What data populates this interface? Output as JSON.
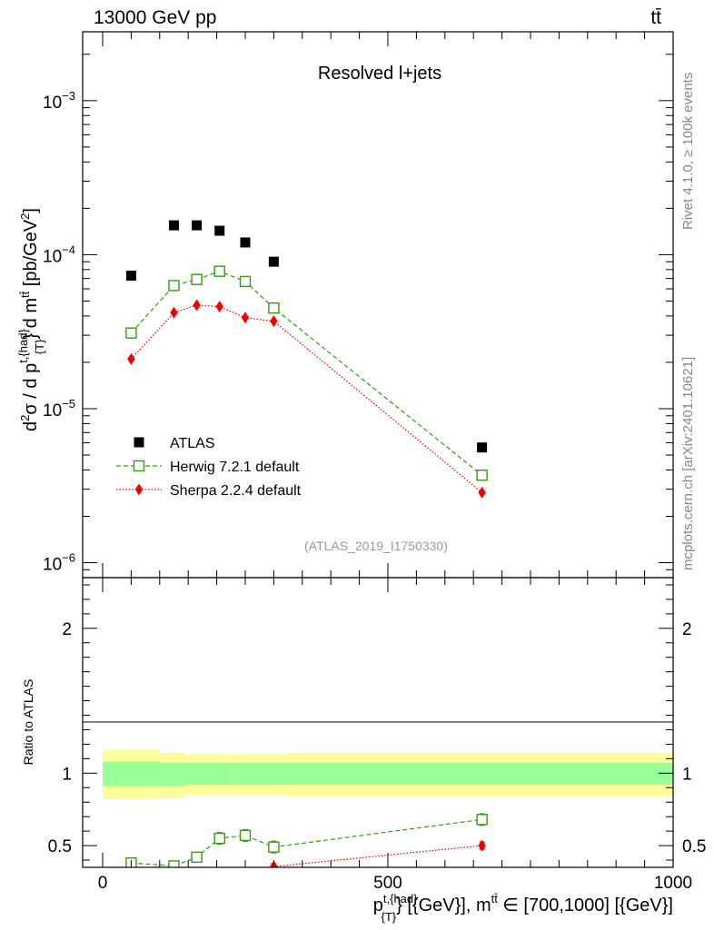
{
  "header": {
    "energy_label": "13000 GeV pp",
    "process_label": "tt̄"
  },
  "side_labels": {
    "rivet": "Rivet 4.1.0, ≥ 100k events",
    "mcplots": "mcplots.cern.ch [arXiv:2401.10621]"
  },
  "chart_data": [
    {
      "type": "scatter",
      "panel": "main",
      "title": "Resolved l+jets",
      "ylabel_text": "d²σ / d p^{t,{had}}_{T} d m^{tt̄} [pb/GeV²]",
      "ylabel": {
        "main": "d",
        "sup1": "2",
        "part2": "σ / d p",
        "sup2": "t,{had}",
        "sub2": "{T}",
        "part3": "} d m",
        "sup3": "tt̄",
        "part4": " [pb/GeV",
        "sup4": "2",
        "part5": "]"
      },
      "yscale": "log",
      "ylim": [
        8e-07,
        0.0028
      ],
      "xlim": [
        -35,
        1000
      ],
      "yticks": [
        {
          "value": 1e-06,
          "label_base": "10",
          "label_exp": "−6"
        },
        {
          "value": 1e-05,
          "label_base": "10",
          "label_exp": "−5"
        },
        {
          "value": 0.0001,
          "label_base": "10",
          "label_exp": "−4"
        },
        {
          "value": 0.001,
          "label_base": "10",
          "label_exp": "−3"
        }
      ],
      "watermark": "(ATLAS_2019_I1750330)",
      "legend_position": "lower-left",
      "series": [
        {
          "name": "ATLAS",
          "style": "square-filled",
          "color": "#000000",
          "x": [
            50,
            125,
            165,
            205,
            250,
            300,
            665
          ],
          "values": [
            7.3e-05,
            0.000155,
            0.000155,
            0.000143,
            0.00012,
            9e-05,
            5.6e-06
          ]
        },
        {
          "name": "Herwig 7.2.1 default",
          "style": "square-open-dashed",
          "color": "#3a9a10",
          "x": [
            50,
            125,
            165,
            205,
            250,
            300,
            665
          ],
          "values": [
            3.1e-05,
            6.3e-05,
            6.9e-05,
            7.8e-05,
            6.7e-05,
            4.5e-05,
            3.7e-06
          ]
        },
        {
          "name": "Sherpa 2.2.4 default",
          "style": "diamond-filled-dotted",
          "color": "#ee0000",
          "x": [
            50,
            125,
            165,
            205,
            250,
            300,
            665
          ],
          "values": [
            2.1e-05,
            4.2e-05,
            4.7e-05,
            4.6e-05,
            3.9e-05,
            3.7e-05,
            2.85e-06
          ]
        }
      ]
    },
    {
      "type": "scatter",
      "panel": "ratio",
      "ylabel": "Ratio to ATLAS",
      "xlabel": {
        "p": "p",
        "sup": "t,{had}",
        "sub": "{T}",
        "rest": "} [{GeV}], m",
        "sup2": "tt̄",
        "tail": " ∈ [700,1000] [{GeV}]"
      },
      "xlabel_text": "p^{t,{had}}_{T}} [{GeV}], m^{tt̄} ∈ [700,1000] [{GeV}]",
      "ylim": [
        0.35,
        2.35
      ],
      "xlim": [
        -35,
        1000
      ],
      "xticks": [
        0,
        500,
        1000
      ],
      "xtick_labels": [
        "0",
        "500",
        "1000"
      ],
      "yticks": [
        0.5,
        1,
        2
      ],
      "ytick_labels": [
        "0.5",
        "1",
        "2"
      ],
      "bands": {
        "edges": [
          0,
          100,
          145,
          185,
          225,
          275,
          325,
          1000
        ],
        "yellow_lo": [
          0.82,
          0.83,
          0.85,
          0.85,
          0.85,
          0.85,
          0.84
        ],
        "yellow_hi": [
          1.16,
          1.14,
          1.13,
          1.13,
          1.13,
          1.13,
          1.14
        ],
        "green_lo": [
          0.91,
          0.91,
          0.92,
          0.92,
          0.92,
          0.92,
          0.92
        ],
        "green_hi": [
          1.08,
          1.07,
          1.07,
          1.07,
          1.07,
          1.07,
          1.07
        ],
        "yellow_color": "#ffff99",
        "green_color": "#99ff99"
      },
      "series": [
        {
          "name": "Herwig 7.2.1 default",
          "style": "square-open-dashed",
          "color": "#3a9a10",
          "x": [
            50,
            125,
            165,
            205,
            250,
            300,
            665
          ],
          "values": [
            0.38,
            0.36,
            0.42,
            0.55,
            0.57,
            0.49,
            0.68
          ],
          "err": [
            0.03,
            0.03,
            0.03,
            0.04,
            0.04,
            0.04,
            0.04
          ]
        },
        {
          "name": "Sherpa 2.2.4 default",
          "style": "diamond-filled-dotted",
          "color": "#ee0000",
          "x": [
            300,
            665
          ],
          "values": [
            0.355,
            0.5
          ],
          "err": [
            0.02,
            0.025
          ]
        }
      ]
    }
  ]
}
